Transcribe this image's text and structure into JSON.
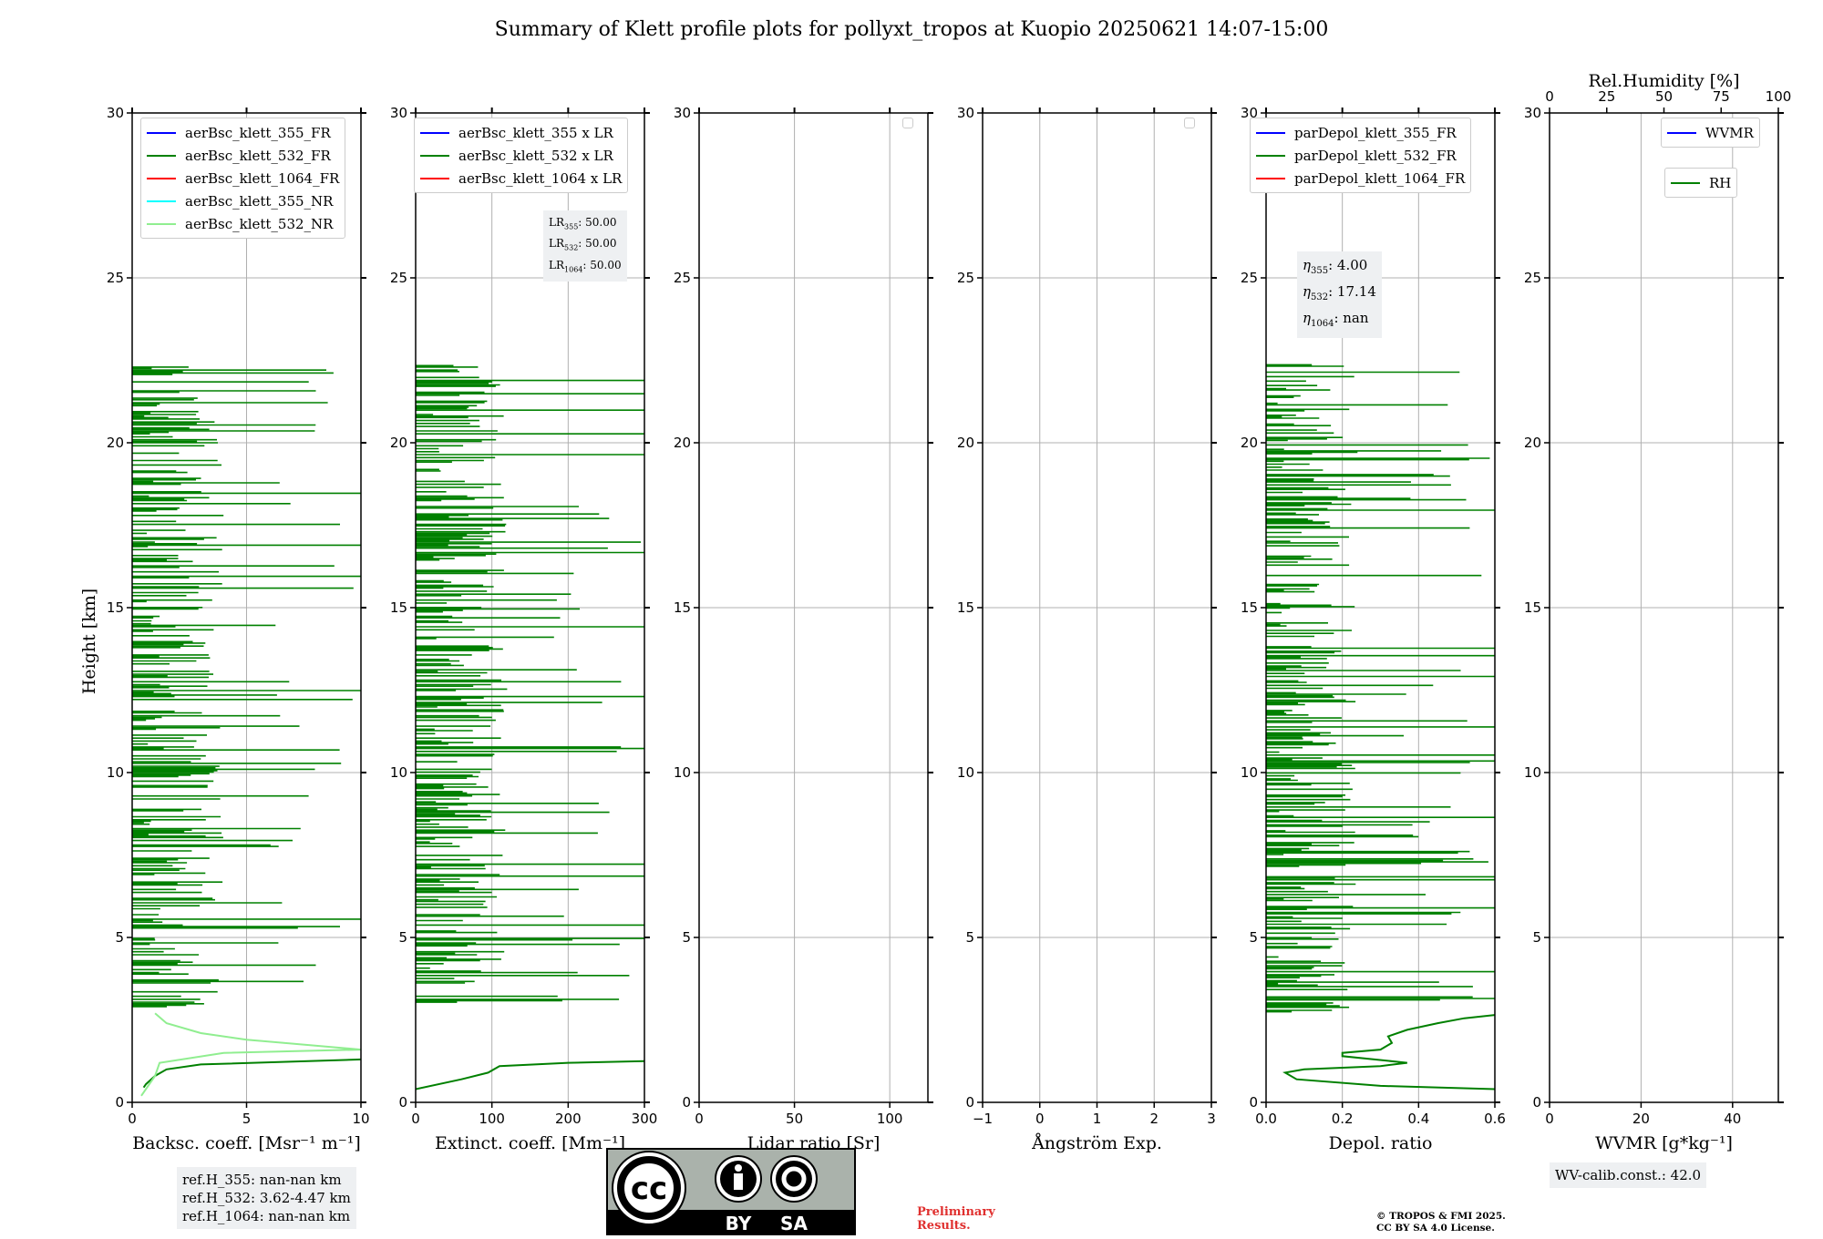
{
  "title": "Summary of Klett profile plots for pollyxt_tropos at Kuopio 20250621 14:07-15:00",
  "y_label": "Height [km]",
  "chart_data": [
    {
      "type": "line",
      "xlabel": "Backsc. coeff. [Msr⁻¹ m⁻¹]",
      "ylabel": "Height [km]",
      "xlim": [
        0,
        10
      ],
      "ylim": [
        0,
        30
      ],
      "x_ticks": [
        "0",
        "5",
        "10"
      ],
      "y_ticks": [
        "0",
        "5",
        "10",
        "15",
        "20",
        "25",
        "30"
      ],
      "grid": true,
      "legend": "top",
      "series": [
        {
          "name": "aerBsc_klett_355_FR",
          "color": "#0000ff",
          "points": []
        },
        {
          "name": "aerBsc_klett_532_FR",
          "color": "#008000",
          "points": [
            [
              0.5,
              0.45
            ],
            [
              0.6,
              0.55
            ],
            [
              1,
              0.8
            ],
            [
              1.5,
              1
            ],
            [
              3,
              1.15
            ],
            [
              10,
              1.3
            ]
          ]
        },
        {
          "name": "aerBsc_klett_1064_FR",
          "color": "#ff0000",
          "points": []
        },
        {
          "name": "aerBsc_klett_355_NR",
          "color": "#00ffff",
          "points": []
        },
        {
          "name": "aerBsc_klett_532_NR",
          "color": "#90ee90",
          "points": [
            [
              0.4,
              0.2
            ],
            [
              1,
              0.8
            ],
            [
              1.2,
              1.2
            ],
            [
              4,
              1.5
            ],
            [
              10,
              1.6
            ],
            [
              5,
              1.9
            ],
            [
              3,
              2.1
            ],
            [
              1.5,
              2.4
            ],
            [
              1,
              2.7
            ]
          ]
        }
      ],
      "annotations": [
        "ref.H_355: nan-nan km",
        "ref.H_532: 3.62-4.47 km",
        "ref.H_1064: nan-nan km"
      ]
    },
    {
      "type": "line",
      "xlabel": "Extinct. coeff. [Mm⁻¹]",
      "xlim": [
        0,
        300
      ],
      "ylim": [
        0,
        30
      ],
      "x_ticks": [
        "0",
        "100",
        "200",
        "300"
      ],
      "y_ticks": [
        "0",
        "5",
        "10",
        "15",
        "20",
        "25",
        "30"
      ],
      "grid": true,
      "legend": "top",
      "series": [
        {
          "name": "aerBsc_klett_355 x LR",
          "color": "#0000ff",
          "points": []
        },
        {
          "name": "aerBsc_klett_532 x LR",
          "color": "#008000",
          "points": [
            [
              0,
              0.4
            ],
            [
              60,
              0.7
            ],
            [
              95,
              0.9
            ],
            [
              110,
              1.1
            ],
            [
              200,
              1.2
            ],
            [
              300,
              1.25
            ]
          ]
        },
        {
          "name": "aerBsc_klett_1064 x LR",
          "color": "#ff0000",
          "points": []
        }
      ],
      "annotations": [
        "LR355: 50.00",
        "LR532: 50.00",
        "LR1064: 50.00"
      ]
    },
    {
      "type": "line",
      "xlabel": "Lidar ratio [Sr]",
      "xlim": [
        0,
        120
      ],
      "ylim": [
        0,
        30
      ],
      "x_ticks": [
        "0",
        "50",
        "100"
      ],
      "y_ticks": [
        "0",
        "5",
        "10",
        "15",
        "20",
        "25",
        "30"
      ],
      "grid": true,
      "legend": "top-right",
      "series": []
    },
    {
      "type": "line",
      "xlabel": "Ångström Exp.",
      "xlim": [
        -1,
        3
      ],
      "ylim": [
        0,
        30
      ],
      "x_ticks": [
        "−1",
        "0",
        "1",
        "2",
        "3"
      ],
      "y_ticks": [
        "0",
        "5",
        "10",
        "15",
        "20",
        "25",
        "30"
      ],
      "grid": true,
      "legend": "top-right",
      "series": []
    },
    {
      "type": "line",
      "xlabel": "Depol. ratio",
      "xlim": [
        0,
        0.6
      ],
      "ylim": [
        0,
        30
      ],
      "x_ticks": [
        "0.0",
        "0.2",
        "0.4",
        "0.6"
      ],
      "y_ticks": [
        "0",
        "5",
        "10",
        "15",
        "20",
        "25",
        "30"
      ],
      "grid": true,
      "legend": "top",
      "series": [
        {
          "name": "parDepol_klett_355_FR",
          "color": "#0000ff",
          "points": []
        },
        {
          "name": "parDepol_klett_532_FR",
          "color": "#008000",
          "points": [
            [
              0.6,
              0.4
            ],
            [
              0.3,
              0.5
            ],
            [
              0.08,
              0.7
            ],
            [
              0.05,
              0.9
            ],
            [
              0.1,
              1.0
            ],
            [
              0.3,
              1.1
            ],
            [
              0.37,
              1.2
            ],
            [
              0.2,
              1.4
            ],
            [
              0.2,
              1.5
            ],
            [
              0.3,
              1.6
            ],
            [
              0.33,
              1.8
            ],
            [
              0.32,
              2.0
            ],
            [
              0.37,
              2.2
            ],
            [
              0.45,
              2.4
            ],
            [
              0.52,
              2.55
            ],
            [
              0.6,
              2.65
            ]
          ]
        },
        {
          "name": "parDepol_klett_1064_FR",
          "color": "#ff0000",
          "points": []
        }
      ],
      "annotations": [
        "η355: 4.00",
        "η532: 17.14",
        "η1064: nan"
      ]
    },
    {
      "type": "line",
      "xlabel": "WVMR [g*kg⁻¹]",
      "top_xlabel": "Rel.Humidity [%]",
      "xlim": [
        0,
        50
      ],
      "top_xlim": [
        0,
        100
      ],
      "ylim": [
        0,
        30
      ],
      "x_ticks": [
        "0",
        "20",
        "40"
      ],
      "top_x_ticks": [
        "0",
        "25",
        "50",
        "75",
        "100"
      ],
      "y_ticks": [
        "0",
        "5",
        "10",
        "15",
        "20",
        "25",
        "30"
      ],
      "grid": true,
      "legend": "top-right",
      "series": [
        {
          "name": "WVMR",
          "color": "#0000ff",
          "points": []
        },
        {
          "name": "RH",
          "color": "#008000",
          "points": []
        }
      ],
      "annotations": [
        "WV-calib.const.: 42.0"
      ]
    }
  ],
  "license": {
    "cc": "cc",
    "by": "BY",
    "sa": "SA"
  },
  "preliminary": [
    "Preliminary",
    "Results."
  ],
  "copyright": [
    "© TROPOS & FMI 2025.",
    "CC BY SA 4.0 License."
  ],
  "colors": {
    "green": "#008000",
    "light_green": "#90ee90",
    "grid": "#b0b0b0",
    "infobox": "#eef0f2"
  }
}
